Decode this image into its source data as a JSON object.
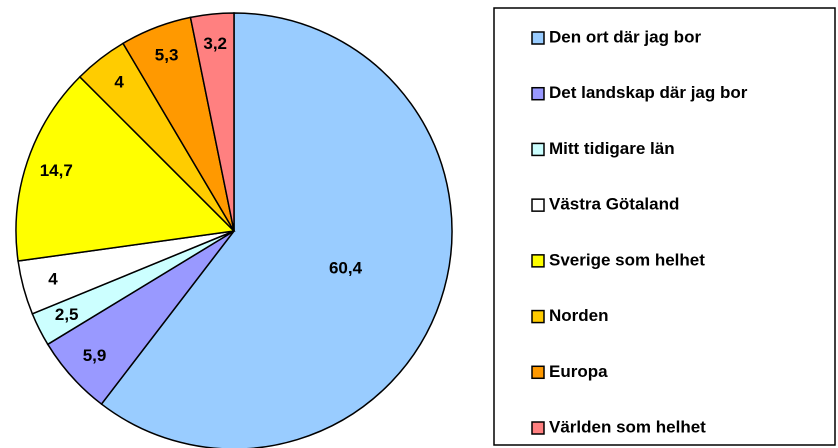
{
  "chart_data": {
    "type": "pie",
    "categories": [
      "Den ort där jag bor",
      "Det landskap där jag bor",
      "Mitt tidigare län",
      "Västra Götaland",
      "Sverige som helhet",
      "Norden",
      "Europa",
      "Världen som helhet"
    ],
    "values": [
      60.4,
      5.9,
      2.5,
      4,
      14.7,
      4,
      5.3,
      3.2
    ],
    "value_labels": [
      "60,4",
      "5,9",
      "2,5",
      "4",
      "14,7",
      "4",
      "5,3",
      "3,2"
    ],
    "colors": [
      "#99ccff",
      "#9999ff",
      "#ccffff",
      "#ffffff",
      "#ffff00",
      "#ffcc00",
      "#ff9900",
      "#ff8080"
    ],
    "legend": "right"
  }
}
